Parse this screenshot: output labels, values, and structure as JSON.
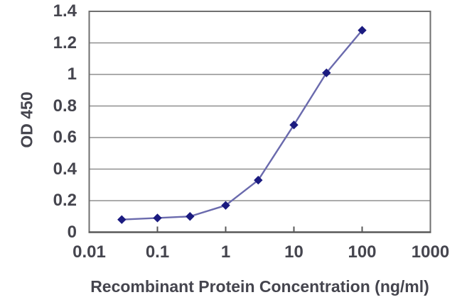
{
  "chart_data": {
    "type": "line",
    "title": "",
    "xlabel": "Recombinant Protein Concentration (ng/ml)",
    "ylabel": "OD 450",
    "x_scale": "log",
    "xlim": [
      0.01,
      1000
    ],
    "ylim": [
      0,
      1.4
    ],
    "x": [
      0.03,
      0.1,
      0.3,
      1,
      3,
      10,
      30,
      100
    ],
    "series": [
      {
        "name": "OD 450",
        "values": [
          0.08,
          0.09,
          0.1,
          0.17,
          0.33,
          0.68,
          1.01,
          1.28
        ]
      }
    ],
    "x_ticks": [
      0.01,
      0.1,
      1,
      10,
      100,
      1000
    ],
    "x_tick_labels": [
      "0.01",
      "0.1",
      "1",
      "10",
      "100",
      "1000"
    ],
    "y_ticks": [
      0,
      0.2,
      0.4,
      0.6,
      0.8,
      1,
      1.2,
      1.4
    ],
    "y_tick_labels": [
      "0",
      "0.2",
      "0.4",
      "0.6",
      "0.8",
      "1",
      "1.2",
      "1.4"
    ],
    "grid": "horizontal",
    "legend": "none",
    "marker": "diamond",
    "colors": {
      "line": "#6a6aad",
      "marker": "#1b1b80",
      "gridline": "#8f8f8f",
      "border": "#6f6f6f",
      "axis": "#585858",
      "text": "#45454e",
      "background": "#ffffff"
    }
  }
}
